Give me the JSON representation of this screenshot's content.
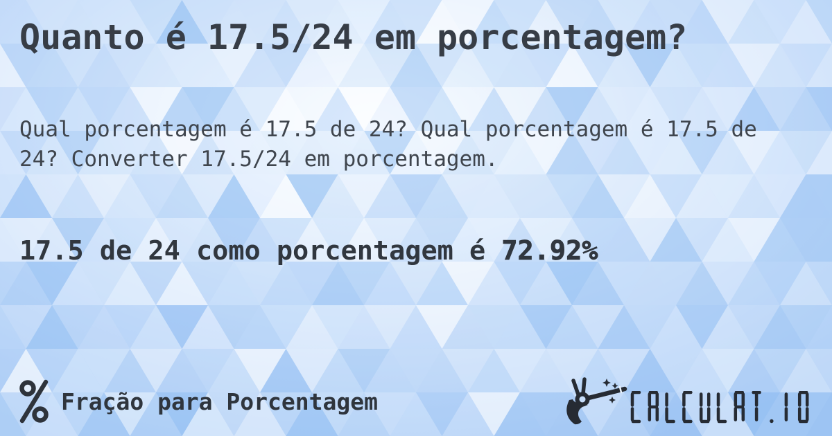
{
  "page": {
    "title": "Quanto é 17.5/24 em porcentagem?"
  },
  "description": "Qual porcentagem é 17.5 de 24? Qual porcentagem é 17.5 de 24? Converter 17.5/24 em porcentagem.",
  "answer": {
    "prefix": "17.5 de 24 como porcentagem é ",
    "value": "72.92%"
  },
  "footer": {
    "category_label": "Fração para Porcentagem",
    "category_icon": "percent-icon",
    "brand": {
      "name": "CALCULAT.IO",
      "icon": "magic-wand-hand-icon"
    }
  },
  "colors": {
    "title_text": "#373d46",
    "body_text": "#3f454d",
    "answer_text": "#31373f",
    "footer_text": "#2f353d",
    "logo_ink": "#262b33",
    "background_light": "#f5faff",
    "background_blue": "#a7caf5",
    "triangle_palette": [
      "#ffffff",
      "#eaf3fe",
      "#d8e8fb",
      "#c6ddf9",
      "#b4d2f7",
      "#a2c8f4",
      "#90bdf2"
    ]
  }
}
